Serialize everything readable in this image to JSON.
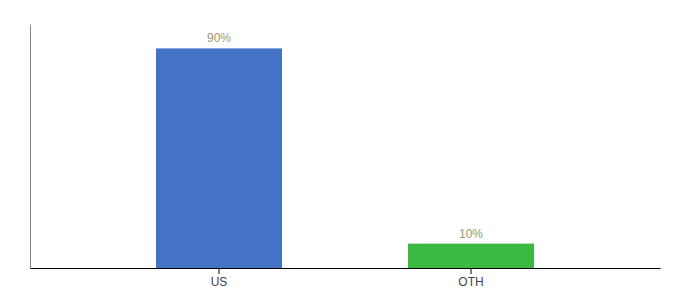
{
  "chart_data": {
    "type": "bar",
    "categories": [
      "US",
      "OTH"
    ],
    "values": [
      90,
      10
    ],
    "value_labels": [
      "90%",
      "10%"
    ],
    "colors": [
      "#4472c4",
      "#3cb943"
    ],
    "ylim": [
      0,
      100
    ],
    "data_labels": true,
    "tick_labels": "x"
  }
}
